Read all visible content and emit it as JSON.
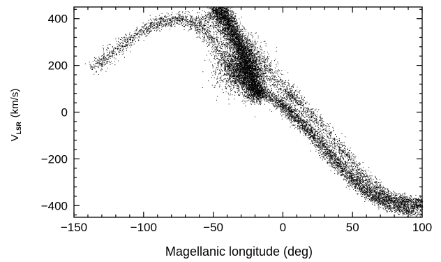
{
  "chart_data": {
    "type": "scatter",
    "title": "",
    "xlabel": "Magellanic longitude (deg)",
    "ylabel": {
      "main": "V",
      "subscript": "LSR",
      "units": "(km/s)"
    },
    "xlim": [
      -150,
      100
    ],
    "ylim": [
      -450,
      450
    ],
    "xticks": [
      -150,
      -100,
      -50,
      0,
      50,
      100
    ],
    "yticks": [
      -400,
      -200,
      0,
      200,
      400
    ],
    "xtick_labels": [
      "−150",
      "−100",
      "−50",
      "0",
      "50",
      "100"
    ],
    "ytick_labels": [
      "−400",
      "−200",
      "0",
      "200",
      "400"
    ],
    "grid": false,
    "legend": null,
    "marker_color": "#000000",
    "series": [
      {
        "structure": "leading-arm-arc",
        "points": [
          [
            -137,
            185
          ],
          [
            -125,
            240
          ],
          [
            -113,
            300
          ],
          [
            -100,
            350
          ],
          [
            -88,
            385
          ],
          [
            -76,
            400
          ],
          [
            -66,
            390
          ],
          [
            -58,
            360
          ],
          [
            -50,
            300
          ],
          [
            -42,
            230
          ],
          [
            -35,
            170
          ],
          [
            -28,
            120
          ]
        ]
      },
      {
        "structure": "dense-core-band",
        "points": [
          [
            -48,
            440
          ],
          [
            -44,
            420
          ],
          [
            -40,
            390
          ],
          [
            -36,
            340
          ],
          [
            -32,
            290
          ],
          [
            -28,
            240
          ],
          [
            -25,
            190
          ],
          [
            -22,
            140
          ],
          [
            -20,
            100
          ],
          [
            -19,
            60
          ]
        ]
      },
      {
        "structure": "core-broad-cloud",
        "points": [
          [
            -40,
            200
          ],
          [
            -35,
            160
          ],
          [
            -30,
            210
          ],
          [
            -27,
            150
          ],
          [
            -24,
            180
          ],
          [
            -22,
            120
          ],
          [
            -30,
            280
          ],
          [
            -26,
            230
          ]
        ]
      },
      {
        "structure": "upper-ridge",
        "points": [
          [
            -58,
            410
          ],
          [
            -48,
            380
          ],
          [
            -38,
            330
          ],
          [
            -28,
            280
          ],
          [
            -18,
            220
          ],
          [
            -8,
            160
          ],
          [
            0,
            110
          ],
          [
            8,
            60
          ]
        ]
      },
      {
        "structure": "main-descending-stream",
        "points": [
          [
            -20,
            100
          ],
          [
            -10,
            70
          ],
          [
            0,
            30
          ],
          [
            10,
            -20
          ],
          [
            20,
            -80
          ],
          [
            30,
            -150
          ],
          [
            40,
            -220
          ],
          [
            50,
            -280
          ],
          [
            60,
            -330
          ],
          [
            70,
            -365
          ],
          [
            80,
            -385
          ],
          [
            90,
            -395
          ],
          [
            100,
            -405
          ]
        ]
      },
      {
        "structure": "lower-parallel-stream",
        "points": [
          [
            -5,
            45
          ],
          [
            5,
            -5
          ],
          [
            15,
            -60
          ],
          [
            25,
            -125
          ],
          [
            35,
            -195
          ],
          [
            45,
            -260
          ],
          [
            55,
            -320
          ],
          [
            65,
            -365
          ],
          [
            75,
            -400
          ],
          [
            85,
            -420
          ],
          [
            95,
            -430
          ]
        ]
      },
      {
        "structure": "upper-parallel-stream",
        "points": [
          [
            0,
            95
          ],
          [
            10,
            50
          ],
          [
            20,
            -5
          ],
          [
            30,
            -70
          ],
          [
            40,
            -145
          ],
          [
            50,
            -215
          ],
          [
            60,
            -285
          ],
          [
            70,
            -335
          ],
          [
            80,
            -365
          ],
          [
            90,
            -375
          ],
          [
            100,
            -380
          ]
        ]
      }
    ]
  }
}
